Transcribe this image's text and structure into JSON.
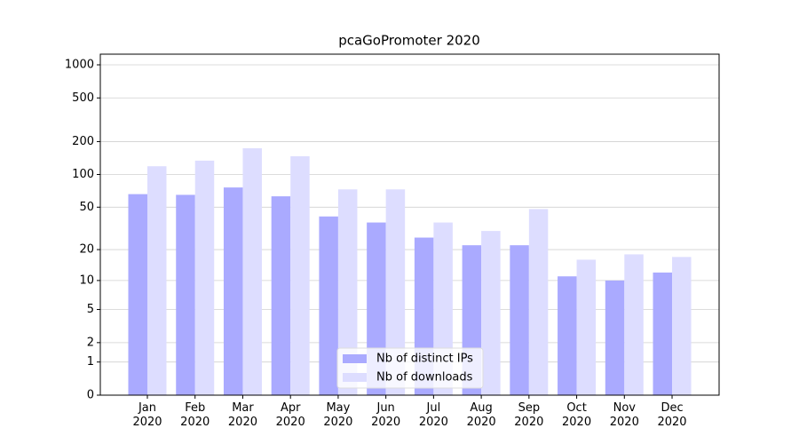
{
  "chart_data": {
    "type": "bar",
    "title": "pcaGoPromoter 2020",
    "categories": [
      "Jan\n2020",
      "Feb\n2020",
      "Mar\n2020",
      "Apr\n2020",
      "May\n2020",
      "Jun\n2020",
      "Jul\n2020",
      "Aug\n2020",
      "Sep\n2020",
      "Oct\n2020",
      "Nov\n2020",
      "Dec\n2020"
    ],
    "series": [
      {
        "name": "Nb of distinct IPs",
        "color": "#aaaaff",
        "values": [
          66,
          65,
          76,
          63,
          41,
          36,
          26,
          22,
          22,
          11,
          10,
          12
        ]
      },
      {
        "name": "Nb of downloads",
        "color": "#ddddff",
        "values": [
          119,
          134,
          174,
          147,
          73,
          73,
          36,
          30,
          48,
          16,
          18,
          17
        ]
      }
    ],
    "yscale": "log1p",
    "ylim": [
      0,
      1250
    ],
    "yticks": [
      0,
      1,
      2,
      5,
      10,
      20,
      50,
      100,
      200,
      500,
      1000
    ],
    "grid": true,
    "legend": "lower center"
  }
}
